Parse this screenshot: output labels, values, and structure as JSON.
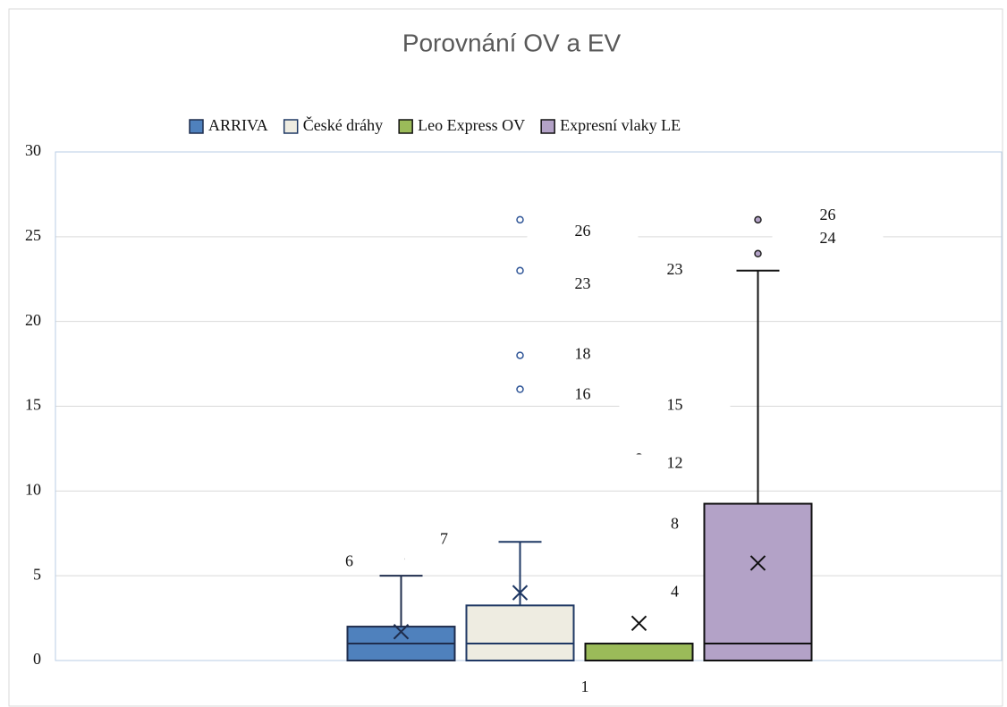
{
  "chart_data": {
    "type": "box",
    "title": "Porovnání OV a EV",
    "categories": [
      "1"
    ],
    "ylim": [
      0,
      30
    ],
    "yticks": [
      0,
      5,
      10,
      15,
      20,
      25,
      30
    ],
    "grid": true,
    "legend": "top",
    "series": [
      {
        "name": "ARRIVA",
        "color": "#4f81bd",
        "line_color": "#1f2d4d",
        "q1": 0,
        "median": 1,
        "q3": 2,
        "mean": 1.7,
        "whisker_low": 0,
        "whisker_high": 5,
        "outliers": [
          6,
          7
        ]
      },
      {
        "name": "České dráhy",
        "color": "#eeece1",
        "line_color": "#1f3864",
        "q1": 0,
        "median": 1,
        "q3": 3.25,
        "mean": 4,
        "whisker_low": 0,
        "whisker_high": 7,
        "outliers": [
          16,
          18,
          23,
          26
        ]
      },
      {
        "name": "Leo Express OV",
        "color": "#9bbb59",
        "line_color": "#111111",
        "q1": 0,
        "median": 0,
        "q3": 1,
        "mean": 2.2,
        "whisker_low": 0,
        "whisker_high": 1,
        "outliers": [
          4,
          8,
          12,
          15,
          23
        ]
      },
      {
        "name": "Expresní vlaky LE",
        "color": "#b3a2c7",
        "line_color": "#111111",
        "q1": 0,
        "median": 1,
        "q3": 9.25,
        "mean": 5.75,
        "whisker_low": 0,
        "whisker_high": 23,
        "outliers": [
          24,
          26
        ]
      }
    ]
  }
}
